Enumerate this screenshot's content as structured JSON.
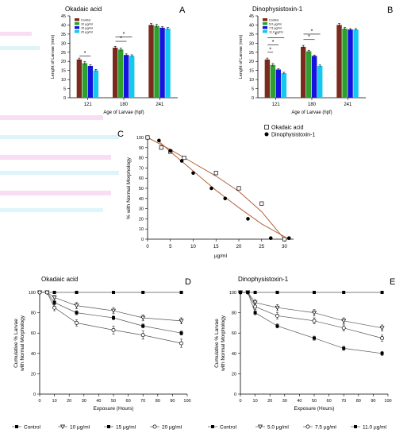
{
  "figure": {
    "panel_letters": [
      "A",
      "B",
      "C",
      "D",
      "E"
    ]
  },
  "colors": {
    "control": "#7b2a1e",
    "dose1": "#2ea02e",
    "dose2": "#1414e0",
    "dose3": "#14c8f0",
    "curve": "#b0623a",
    "axis": "#000000",
    "marker": "#000000"
  },
  "chart_data": [
    {
      "panel": "A",
      "type": "bar",
      "title": "Okadaic acid",
      "xlabel": "Age of Larvae (hpf)",
      "ylabel": "Lenght of Larvae (mm)",
      "categories": [
        "121",
        "180",
        "241"
      ],
      "ylim": [
        0,
        45
      ],
      "yticks": [
        0,
        5,
        10,
        15,
        20,
        25,
        30,
        35,
        40,
        45
      ],
      "legend": "top-left",
      "series": [
        {
          "name": "Control",
          "values": [
            21,
            27.5,
            40
          ],
          "errors": [
            0.8,
            0.8,
            0.8
          ]
        },
        {
          "name": "10 µg/ml",
          "values": [
            19,
            26.5,
            39.5
          ],
          "errors": [
            0.8,
            0.8,
            0.8
          ]
        },
        {
          "name": "15 µg/ml",
          "values": [
            17.5,
            23.5,
            38.5
          ],
          "errors": [
            0.6,
            0.6,
            0.6
          ]
        },
        {
          "name": "20 µg/ml",
          "values": [
            15,
            23,
            38
          ],
          "errors": [
            0.6,
            0.6,
            0.6
          ]
        }
      ],
      "significance": [
        {
          "category": 0,
          "from": 0,
          "to": 2,
          "level": 23,
          "label": "*"
        },
        {
          "category": 1,
          "from": 0,
          "to": 2,
          "level": 31,
          "label": "*"
        },
        {
          "category": 1,
          "from": 0,
          "to": 3,
          "level": 33.5,
          "label": "*"
        }
      ]
    },
    {
      "panel": "B",
      "type": "bar",
      "title": "Dinophysistoxin-1",
      "xlabel": "Age of Larvae (hpf)",
      "ylabel": "Lenght of Larvae (mm)",
      "categories": [
        "121",
        "180",
        "241"
      ],
      "ylim": [
        0,
        45
      ],
      "yticks": [
        0,
        5,
        10,
        15,
        20,
        25,
        30,
        35,
        40,
        45
      ],
      "legend": "top-left",
      "series": [
        {
          "name": "Control",
          "values": [
            21,
            28,
            40
          ],
          "errors": [
            0.8,
            0.8,
            0.8
          ]
        },
        {
          "name": "5.0 µg/ml",
          "values": [
            18,
            25.5,
            38
          ],
          "errors": [
            0.8,
            0.6,
            0.6
          ]
        },
        {
          "name": "7.5 µg/ml",
          "values": [
            15.5,
            23,
            37.5
          ],
          "errors": [
            0.5,
            0.5,
            0.5
          ]
        },
        {
          "name": "11.0 µg/ml",
          "values": [
            13.5,
            17.5,
            37.5
          ],
          "errors": [
            0.5,
            0.5,
            0.5
          ]
        }
      ],
      "significance": [
        {
          "category": 0,
          "from": 0,
          "to": 1,
          "level": 25,
          "label": "*"
        },
        {
          "category": 0,
          "from": 0,
          "to": 2,
          "level": 29,
          "label": "*"
        },
        {
          "category": 0,
          "from": 0,
          "to": 3,
          "level": 33,
          "label": "*"
        },
        {
          "category": 1,
          "from": 0,
          "to": 2,
          "level": 32,
          "label": "*"
        },
        {
          "category": 1,
          "from": 0,
          "to": 3,
          "level": 35,
          "label": "*"
        }
      ]
    },
    {
      "panel": "C",
      "type": "scatter",
      "xlabel": "µg/ml",
      "ylabel": "% with Normal Morphology",
      "xlim": [
        0,
        32
      ],
      "ylim": [
        0,
        100
      ],
      "xticks": [
        0,
        5,
        10,
        15,
        20,
        25,
        30
      ],
      "yticks": [
        0,
        10,
        20,
        30,
        40,
        50,
        60,
        70,
        80,
        90,
        100
      ],
      "legend": "top-right",
      "series": [
        {
          "name": "Okadaic acid",
          "marker": "open-square",
          "x": [
            0,
            3,
            5,
            8,
            15,
            20,
            25,
            30
          ],
          "y": [
            100,
            90,
            86,
            80,
            65,
            50,
            35,
            0
          ],
          "fit": [
            [
              0,
              100
            ],
            [
              5,
              88
            ],
            [
              10,
              75
            ],
            [
              15,
              62
            ],
            [
              20,
              47
            ],
            [
              25,
              27
            ],
            [
              30,
              0
            ]
          ]
        },
        {
          "name": "Dinophysistoxin-1",
          "marker": "filled-circle",
          "x": [
            2.5,
            5,
            7.5,
            10,
            14,
            17,
            22,
            27,
            31
          ],
          "y": [
            97,
            87,
            77,
            65,
            50,
            40,
            20,
            1,
            1
          ],
          "fit": [
            [
              2.5,
              96
            ],
            [
              5,
              86
            ],
            [
              10,
              67
            ],
            [
              15,
              48
            ],
            [
              20,
              31
            ],
            [
              25,
              15
            ],
            [
              31,
              0
            ]
          ]
        }
      ]
    },
    {
      "panel": "D",
      "type": "line",
      "title": "Okadaic acid",
      "xlabel": "Exposure (Hours)",
      "ylabel": "Cumulative % Larvae with Normal Morphology",
      "xlim": [
        0,
        100
      ],
      "ylim": [
        0,
        100
      ],
      "xticks": [
        0,
        10,
        20,
        30,
        40,
        50,
        60,
        70,
        80,
        90,
        100
      ],
      "yticks": [
        0,
        20,
        40,
        60,
        80,
        100
      ],
      "legend": "bottom",
      "x": [
        0,
        5,
        10,
        25,
        50,
        70,
        96
      ],
      "series": [
        {
          "name": "Control",
          "marker": "filled-square",
          "values": [
            100,
            100,
            100,
            100,
            100,
            100,
            100
          ],
          "errors": [
            0,
            0,
            0,
            0,
            0,
            0,
            0
          ]
        },
        {
          "name": "10 µg/ml",
          "marker": "open-triangle",
          "values": [
            100,
            100,
            95,
            87,
            82,
            75,
            72
          ],
          "errors": [
            0,
            0,
            2,
            3,
            3,
            3,
            3
          ]
        },
        {
          "name": "15 µg/ml",
          "marker": "filled-square",
          "values": [
            100,
            100,
            90,
            80,
            75,
            67,
            60
          ],
          "errors": [
            0,
            0,
            2,
            2,
            2,
            2,
            2
          ]
        },
        {
          "name": "20 µg/ml",
          "marker": "open-circle",
          "values": [
            100,
            100,
            85,
            70,
            63,
            58,
            50
          ],
          "errors": [
            0,
            0,
            3,
            3,
            4,
            4,
            4
          ]
        }
      ]
    },
    {
      "panel": "E",
      "type": "line",
      "title": "Dinophysistoxin-1",
      "xlabel": "Exposure (Hours)",
      "ylabel": "Cumulative % Larvae with Normal Morphology",
      "xlim": [
        0,
        100
      ],
      "ylim": [
        0,
        100
      ],
      "xticks": [
        0,
        10,
        20,
        30,
        40,
        50,
        60,
        70,
        80,
        90,
        100
      ],
      "yticks": [
        0,
        20,
        40,
        60,
        80,
        100
      ],
      "legend": "bottom",
      "x": [
        0,
        5,
        10,
        25,
        50,
        70,
        96
      ],
      "series": [
        {
          "name": "Control",
          "marker": "filled-square",
          "values": [
            100,
            100,
            100,
            100,
            100,
            100,
            100
          ],
          "errors": [
            0,
            0,
            0,
            0,
            0,
            0,
            0
          ]
        },
        {
          "name": "5.0 µg/ml",
          "marker": "open-triangle",
          "values": [
            100,
            100,
            90,
            85,
            80,
            72,
            65
          ],
          "errors": [
            0,
            0,
            3,
            3,
            3,
            3,
            3
          ]
        },
        {
          "name": "7.5 µg/ml",
          "marker": "open-circle",
          "values": [
            100,
            100,
            86,
            77,
            72,
            65,
            55
          ],
          "errors": [
            0,
            0,
            3,
            3,
            3,
            3,
            3
          ]
        },
        {
          "name": "11.0 µg/ml",
          "marker": "filled-square",
          "values": [
            100,
            100,
            80,
            67,
            55,
            45,
            40
          ],
          "errors": [
            0,
            0,
            2,
            2,
            2,
            2,
            2
          ]
        }
      ]
    }
  ]
}
